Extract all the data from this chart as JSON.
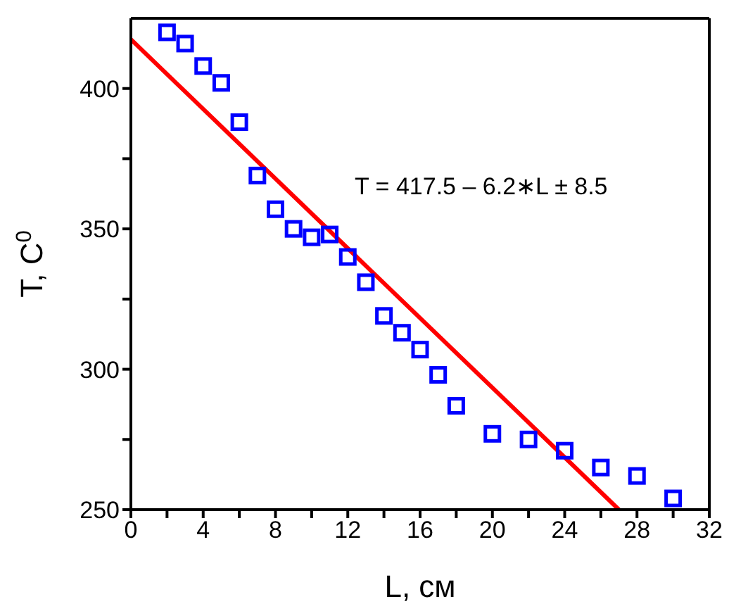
{
  "chart_data": {
    "type": "scatter",
    "xlabel": "L, см",
    "ylabel": "T, C$^{0}$",
    "xlim": [
      0,
      32
    ],
    "ylim": [
      250,
      425
    ],
    "xticks": [
      0,
      {
        "value": 2,
        "label": null
      },
      4,
      {
        "value": 6,
        "label": null
      },
      8,
      {
        "value": 10,
        "label": null
      },
      12,
      {
        "value": 14,
        "label": null
      },
      16,
      {
        "value": 18,
        "label": null
      },
      20,
      {
        "value": 22,
        "label": null
      },
      24,
      {
        "value": 26,
        "label": null
      },
      28,
      {
        "value": 30,
        "label": null
      },
      32
    ],
    "yticks": [
      250,
      {
        "value": 275,
        "label": null
      },
      300,
      {
        "value": 325,
        "label": null
      },
      350,
      {
        "value": 375,
        "label": null
      },
      400
    ],
    "marker": "square",
    "annotations": [
      "T = 417.5 – 6.2∗L ± 8.5"
    ],
    "series": [
      {
        "color": "#0000ff",
        "x": [
          2,
          3,
          4,
          5,
          6,
          7,
          8,
          9,
          10,
          11,
          12,
          13,
          14,
          15,
          16,
          17,
          18,
          20,
          22,
          24,
          26,
          28,
          30
        ],
        "values": [
          420,
          416,
          408,
          402,
          388,
          369,
          357,
          350,
          347,
          348,
          340,
          331,
          319,
          313,
          307,
          298,
          287,
          277,
          275,
          271,
          265,
          262,
          254
        ]
      },
      {
        "type": "line",
        "color": "#ff0000",
        "line_style": "solid",
        "marker": "none",
        "x": [
          0,
          27
        ],
        "values": [
          417.5,
          250
        ]
      }
    ]
  }
}
